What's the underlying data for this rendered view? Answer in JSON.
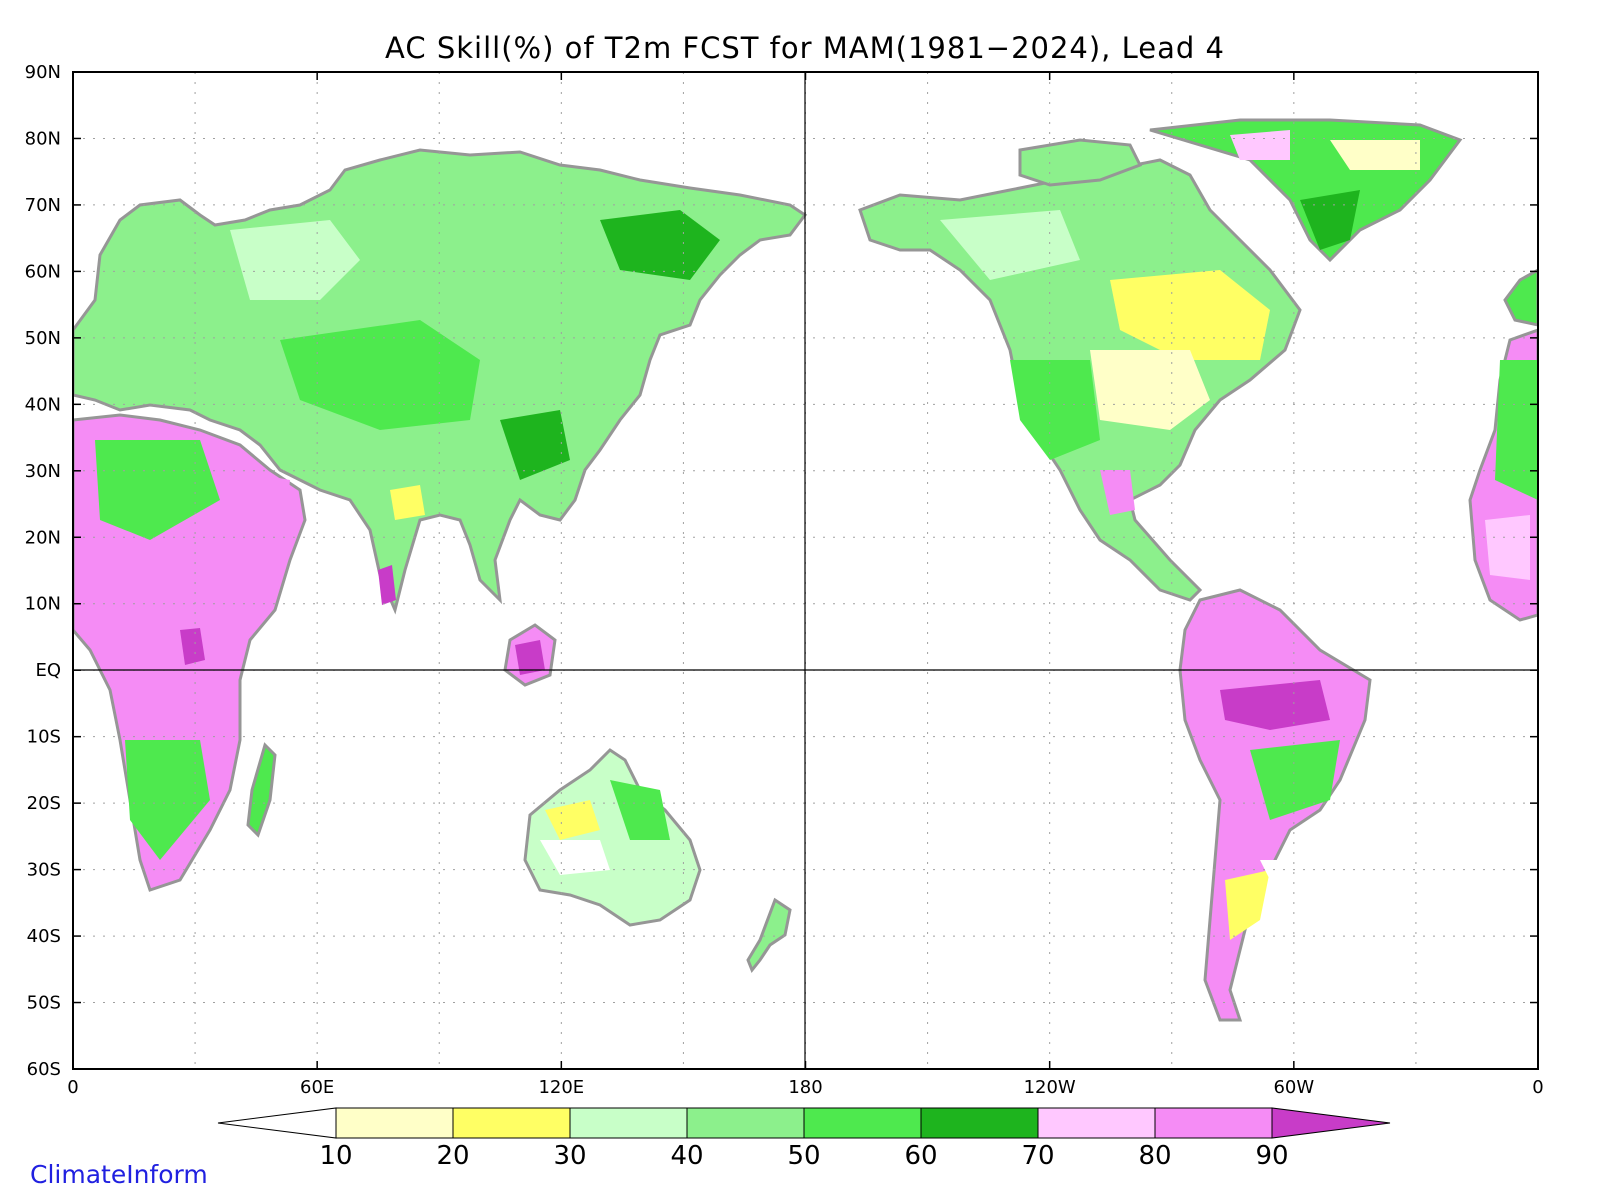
{
  "title": "AC Skill(%) of T2m FCST for MAM(1981−2024), Lead 4",
  "branding": "ClimateInform",
  "lat_labels": [
    "90N",
    "80N",
    "70N",
    "60N",
    "50N",
    "40N",
    "30N",
    "20N",
    "10N",
    "EQ",
    "10S",
    "20S",
    "30S",
    "40S",
    "50S",
    "60S"
  ],
  "lon_labels": [
    "0",
    "60E",
    "120E",
    "180",
    "120W",
    "60W",
    "0"
  ],
  "colorbar": {
    "ticks": [
      "10",
      "20",
      "30",
      "40",
      "50",
      "60",
      "70",
      "80",
      "90"
    ],
    "colors": [
      "#ffffff",
      "#ffffc8",
      "#ffff64",
      "#c8ffc8",
      "#8cf08c",
      "#4ee94e",
      "#1eb41e",
      "#ffc8ff",
      "#f58cf5",
      "#c83cc8"
    ]
  },
  "land_colors": {
    "coast": "#969696",
    "borders": "#000000",
    "gridlines": "#a0a0a0"
  }
}
